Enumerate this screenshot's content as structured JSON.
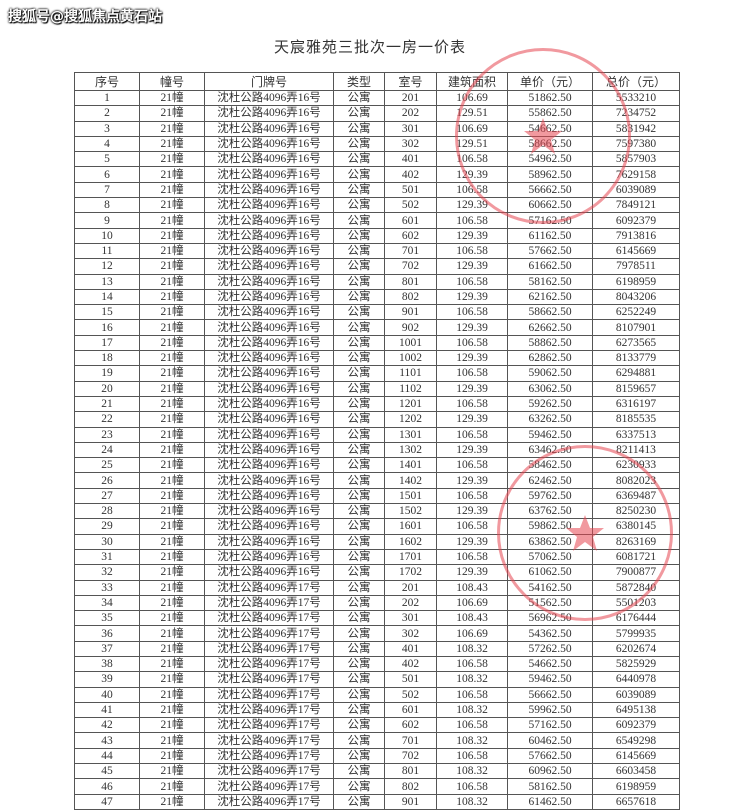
{
  "title": "天宸雅苑三批次一房一价表",
  "columns": [
    "序号",
    "幢号",
    "门牌号",
    "类型",
    "室号",
    "建筑面积",
    "单价（元）",
    "总价（元）"
  ],
  "rows": [
    [
      "1",
      "21幢",
      "沈杜公路4096弄16号",
      "公寓",
      "201",
      "106.69",
      "51862.50",
      "5533210"
    ],
    [
      "2",
      "21幢",
      "沈杜公路4096弄16号",
      "公寓",
      "202",
      "129.51",
      "55862.50",
      "7234752"
    ],
    [
      "3",
      "21幢",
      "沈杜公路4096弄16号",
      "公寓",
      "301",
      "106.69",
      "54662.50",
      "5831942"
    ],
    [
      "4",
      "21幢",
      "沈杜公路4096弄16号",
      "公寓",
      "302",
      "129.51",
      "58662.50",
      "7597380"
    ],
    [
      "5",
      "21幢",
      "沈杜公路4096弄16号",
      "公寓",
      "401",
      "106.58",
      "54962.50",
      "5857903"
    ],
    [
      "6",
      "21幢",
      "沈杜公路4096弄16号",
      "公寓",
      "402",
      "129.39",
      "58962.50",
      "7629158"
    ],
    [
      "7",
      "21幢",
      "沈杜公路4096弄16号",
      "公寓",
      "501",
      "106.58",
      "56662.50",
      "6039089"
    ],
    [
      "8",
      "21幢",
      "沈杜公路4096弄16号",
      "公寓",
      "502",
      "129.39",
      "60662.50",
      "7849121"
    ],
    [
      "9",
      "21幢",
      "沈杜公路4096弄16号",
      "公寓",
      "601",
      "106.58",
      "57162.50",
      "6092379"
    ],
    [
      "10",
      "21幢",
      "沈杜公路4096弄16号",
      "公寓",
      "602",
      "129.39",
      "61162.50",
      "7913816"
    ],
    [
      "11",
      "21幢",
      "沈杜公路4096弄16号",
      "公寓",
      "701",
      "106.58",
      "57662.50",
      "6145669"
    ],
    [
      "12",
      "21幢",
      "沈杜公路4096弄16号",
      "公寓",
      "702",
      "129.39",
      "61662.50",
      "7978511"
    ],
    [
      "13",
      "21幢",
      "沈杜公路4096弄16号",
      "公寓",
      "801",
      "106.58",
      "58162.50",
      "6198959"
    ],
    [
      "14",
      "21幢",
      "沈杜公路4096弄16号",
      "公寓",
      "802",
      "129.39",
      "62162.50",
      "8043206"
    ],
    [
      "15",
      "21幢",
      "沈杜公路4096弄16号",
      "公寓",
      "901",
      "106.58",
      "58662.50",
      "6252249"
    ],
    [
      "16",
      "21幢",
      "沈杜公路4096弄16号",
      "公寓",
      "902",
      "129.39",
      "62662.50",
      "8107901"
    ],
    [
      "17",
      "21幢",
      "沈杜公路4096弄16号",
      "公寓",
      "1001",
      "106.58",
      "58862.50",
      "6273565"
    ],
    [
      "18",
      "21幢",
      "沈杜公路4096弄16号",
      "公寓",
      "1002",
      "129.39",
      "62862.50",
      "8133779"
    ],
    [
      "19",
      "21幢",
      "沈杜公路4096弄16号",
      "公寓",
      "1101",
      "106.58",
      "59062.50",
      "6294881"
    ],
    [
      "20",
      "21幢",
      "沈杜公路4096弄16号",
      "公寓",
      "1102",
      "129.39",
      "63062.50",
      "8159657"
    ],
    [
      "21",
      "21幢",
      "沈杜公路4096弄16号",
      "公寓",
      "1201",
      "106.58",
      "59262.50",
      "6316197"
    ],
    [
      "22",
      "21幢",
      "沈杜公路4096弄16号",
      "公寓",
      "1202",
      "129.39",
      "63262.50",
      "8185535"
    ],
    [
      "23",
      "21幢",
      "沈杜公路4096弄16号",
      "公寓",
      "1301",
      "106.58",
      "59462.50",
      "6337513"
    ],
    [
      "24",
      "21幢",
      "沈杜公路4096弄16号",
      "公寓",
      "1302",
      "129.39",
      "63462.50",
      "8211413"
    ],
    [
      "25",
      "21幢",
      "沈杜公路4096弄16号",
      "公寓",
      "1401",
      "106.58",
      "58462.50",
      "6230933"
    ],
    [
      "26",
      "21幢",
      "沈杜公路4096弄16号",
      "公寓",
      "1402",
      "129.39",
      "62462.50",
      "8082023"
    ],
    [
      "27",
      "21幢",
      "沈杜公路4096弄16号",
      "公寓",
      "1501",
      "106.58",
      "59762.50",
      "6369487"
    ],
    [
      "28",
      "21幢",
      "沈杜公路4096弄16号",
      "公寓",
      "1502",
      "129.39",
      "63762.50",
      "8250230"
    ],
    [
      "29",
      "21幢",
      "沈杜公路4096弄16号",
      "公寓",
      "1601",
      "106.58",
      "59862.50",
      "6380145"
    ],
    [
      "30",
      "21幢",
      "沈杜公路4096弄16号",
      "公寓",
      "1602",
      "129.39",
      "63862.50",
      "8263169"
    ],
    [
      "31",
      "21幢",
      "沈杜公路4096弄16号",
      "公寓",
      "1701",
      "106.58",
      "57062.50",
      "6081721"
    ],
    [
      "32",
      "21幢",
      "沈杜公路4096弄16号",
      "公寓",
      "1702",
      "129.39",
      "61062.50",
      "7900877"
    ],
    [
      "33",
      "21幢",
      "沈杜公路4096弄17号",
      "公寓",
      "201",
      "108.43",
      "54162.50",
      "5872840"
    ],
    [
      "34",
      "21幢",
      "沈杜公路4096弄17号",
      "公寓",
      "202",
      "106.69",
      "51562.50",
      "5501203"
    ],
    [
      "35",
      "21幢",
      "沈杜公路4096弄17号",
      "公寓",
      "301",
      "108.43",
      "56962.50",
      "6176444"
    ],
    [
      "36",
      "21幢",
      "沈杜公路4096弄17号",
      "公寓",
      "302",
      "106.69",
      "54362.50",
      "5799935"
    ],
    [
      "37",
      "21幢",
      "沈杜公路4096弄17号",
      "公寓",
      "401",
      "108.32",
      "57262.50",
      "6202674"
    ],
    [
      "38",
      "21幢",
      "沈杜公路4096弄17号",
      "公寓",
      "402",
      "106.58",
      "54662.50",
      "5825929"
    ],
    [
      "39",
      "21幢",
      "沈杜公路4096弄17号",
      "公寓",
      "501",
      "108.32",
      "59462.50",
      "6440978"
    ],
    [
      "40",
      "21幢",
      "沈杜公路4096弄17号",
      "公寓",
      "502",
      "106.58",
      "56662.50",
      "6039089"
    ],
    [
      "41",
      "21幢",
      "沈杜公路4096弄17号",
      "公寓",
      "601",
      "108.32",
      "59962.50",
      "6495138"
    ],
    [
      "42",
      "21幢",
      "沈杜公路4096弄17号",
      "公寓",
      "602",
      "106.58",
      "57162.50",
      "6092379"
    ],
    [
      "43",
      "21幢",
      "沈杜公路4096弄17号",
      "公寓",
      "701",
      "108.32",
      "60462.50",
      "6549298"
    ],
    [
      "44",
      "21幢",
      "沈杜公路4096弄17号",
      "公寓",
      "702",
      "106.58",
      "57662.50",
      "6145669"
    ],
    [
      "45",
      "21幢",
      "沈杜公路4096弄17号",
      "公寓",
      "801",
      "108.32",
      "60962.50",
      "6603458"
    ],
    [
      "46",
      "21幢",
      "沈杜公路4096弄17号",
      "公寓",
      "802",
      "106.58",
      "58162.50",
      "6198959"
    ],
    [
      "47",
      "21幢",
      "沈杜公路4096弄17号",
      "公寓",
      "901",
      "108.32",
      "61462.50",
      "6657618"
    ]
  ],
  "watermark": "搜狐号@搜狐焦点黄石站",
  "colors": {
    "stamp": "#e64650",
    "border": "#555555"
  }
}
